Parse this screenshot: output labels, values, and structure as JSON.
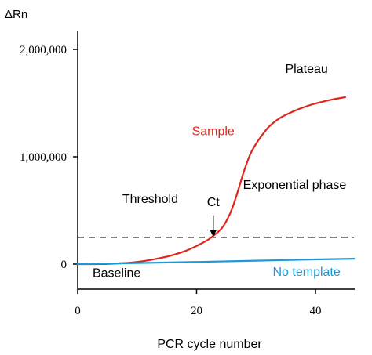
{
  "chart_data": {
    "type": "line",
    "ylabel": "ΔRn",
    "xlabel": "PCR cycle number",
    "xlim": [
      0,
      46.5
    ],
    "ylim": [
      0,
      2200000
    ],
    "x_ticks": [
      {
        "value": 0,
        "label": "0"
      },
      {
        "value": 20,
        "label": "20"
      },
      {
        "value": 40,
        "label": "40"
      }
    ],
    "y_ticks": [
      {
        "value": 0,
        "label": "0"
      },
      {
        "value": 1000000,
        "label": "1,000,000"
      },
      {
        "value": 2000000,
        "label": "2,000,000"
      }
    ],
    "grid": false,
    "threshold": {
      "value": 250000,
      "x_range": [
        0,
        46.5
      ]
    },
    "series": [
      {
        "name": "Sample",
        "color": "#e0261b",
        "x": [
          0,
          5,
          10,
          15,
          18,
          20,
          22,
          24,
          25,
          26,
          27,
          28,
          29,
          30,
          31,
          32,
          33,
          34,
          35,
          37,
          39,
          41,
          43,
          45
        ],
        "y": [
          0,
          2000,
          20000,
          70000,
          120000,
          170000,
          230000,
          320000,
          400000,
          520000,
          690000,
          870000,
          1020000,
          1120000,
          1200000,
          1270000,
          1320000,
          1360000,
          1390000,
          1440000,
          1480000,
          1510000,
          1535000,
          1555000
        ]
      },
      {
        "name": "No template",
        "color": "#1b9ad6",
        "x": [
          0,
          10,
          20,
          30,
          40,
          46.5
        ],
        "y": [
          0,
          10000,
          20000,
          32000,
          44000,
          50000
        ]
      }
    ],
    "annotations": [
      {
        "id": "plateau",
        "text": "Plateau",
        "x": 38.5,
        "y": 1780000,
        "color": "#000000"
      },
      {
        "id": "sample",
        "text": "Sample",
        "x": 22.8,
        "y": 1200000,
        "color": "#e0261b"
      },
      {
        "id": "exponential",
        "text": "Exponential phase",
        "x": 36.5,
        "y": 700000,
        "color": "#000000"
      },
      {
        "id": "threshold",
        "text": "Threshold",
        "x": 7.5,
        "y": 570000,
        "color": "#000000"
      },
      {
        "id": "ct",
        "text": "Ct",
        "x": 22.8,
        "y": 540000,
        "color": "#000000"
      },
      {
        "id": "baseline",
        "text": "Baseline",
        "x": 2.5,
        "y": -120000,
        "color": "#000000"
      },
      {
        "id": "no-template",
        "text": "No template",
        "x": 38.5,
        "y": -110000,
        "color": "#1b9ad6"
      }
    ],
    "ct_arrow": {
      "x": 22.8,
      "y_start": 455000,
      "y_end": 255000
    }
  }
}
